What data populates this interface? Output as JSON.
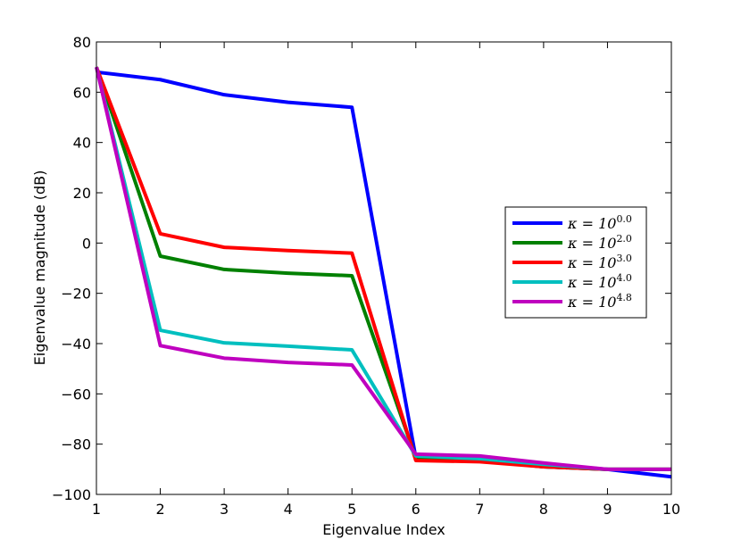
{
  "chart_data": {
    "type": "line",
    "xlabel": "Eigenvalue Index",
    "ylabel": "Eigenvalue magnitude (dB)",
    "x": [
      1,
      2,
      3,
      4,
      5,
      6,
      7,
      8,
      9,
      10
    ],
    "xlim": [
      1,
      10
    ],
    "xticks": [
      1,
      2,
      3,
      4,
      5,
      6,
      7,
      8,
      9,
      10
    ],
    "ylim": [
      -100,
      80
    ],
    "yticks": [
      {
        "value": -100,
        "label": "−100"
      },
      {
        "value": -80,
        "label": "−80"
      },
      {
        "value": -60,
        "label": "−60"
      },
      {
        "value": -40,
        "label": "−40"
      },
      {
        "value": -20,
        "label": "−20"
      },
      0,
      20,
      40,
      60,
      80
    ],
    "legend_position": "right",
    "series": [
      {
        "name": "κ = 10",
        "exponent": "0.0",
        "color": "#0000ff",
        "values": [
          68,
          65,
          59,
          56,
          54,
          -85.5,
          -86.5,
          -89,
          -90,
          -93
        ]
      },
      {
        "name": "κ = 10",
        "exponent": "2.0",
        "color": "#008000",
        "values": [
          70,
          -5.2,
          -10.5,
          -12,
          -13,
          -85.5,
          -86.5,
          -89,
          -90,
          -90
        ]
      },
      {
        "name": "κ = 10",
        "exponent": "3.0",
        "color": "#ff0000",
        "values": [
          70,
          3.7,
          -1.7,
          -3,
          -4,
          -86.5,
          -87,
          -89,
          -90,
          -90
        ]
      },
      {
        "name": "κ = 10",
        "exponent": "4.0",
        "color": "#00bfbf",
        "values": [
          70,
          -34.7,
          -39.7,
          -41,
          -42.5,
          -84.7,
          -85.8,
          -88,
          -90,
          -90
        ]
      },
      {
        "name": "κ = 10",
        "exponent": "4.8",
        "color": "#bf00bf",
        "values": [
          70,
          -40.8,
          -45.8,
          -47.5,
          -48.5,
          -84,
          -84.7,
          -87.5,
          -90,
          -90
        ]
      }
    ]
  }
}
